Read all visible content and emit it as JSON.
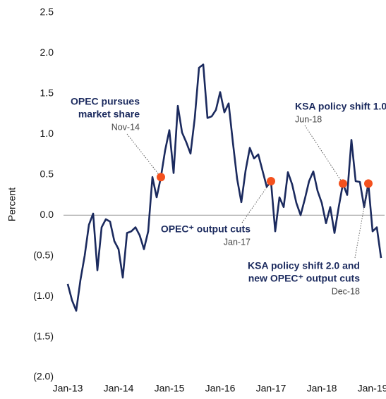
{
  "chart_data": {
    "type": "line",
    "y_label": "Percent",
    "categories": [
      "Jan-13",
      null,
      null,
      null,
      null,
      null,
      null,
      null,
      null,
      null,
      null,
      null,
      "Jan-14",
      null,
      null,
      null,
      null,
      null,
      null,
      null,
      null,
      null,
      null,
      null,
      "Jan-15",
      null,
      null,
      null,
      null,
      null,
      null,
      null,
      null,
      null,
      null,
      null,
      "Jan-16",
      null,
      null,
      null,
      null,
      null,
      null,
      null,
      null,
      null,
      null,
      null,
      "Jan-17",
      null,
      null,
      null,
      null,
      null,
      null,
      null,
      null,
      null,
      null,
      null,
      "Jan-18",
      null,
      null,
      null,
      null,
      null,
      null,
      null,
      null,
      null,
      null,
      null,
      "Jan-19",
      null,
      null
    ],
    "series": [
      {
        "color": "#1b2a5e",
        "values": [
          -0.85,
          -1.05,
          -1.18,
          -0.8,
          -0.5,
          -0.12,
          0.02,
          -0.68,
          -0.15,
          -0.05,
          -0.08,
          -0.32,
          -0.42,
          -0.77,
          -0.22,
          -0.2,
          -0.15,
          -0.25,
          -0.42,
          -0.2,
          0.47,
          0.22,
          0.47,
          0.8,
          1.05,
          0.52,
          1.35,
          1.02,
          0.9,
          0.76,
          1.2,
          1.82,
          1.86,
          1.2,
          1.22,
          1.3,
          1.52,
          1.27,
          1.38,
          0.9,
          0.45,
          0.16,
          0.55,
          0.83,
          0.7,
          0.75,
          0.55,
          0.35,
          0.42,
          -0.2,
          0.22,
          0.1,
          0.53,
          0.38,
          0.15,
          0.0,
          0.2,
          0.42,
          0.54,
          0.3,
          0.15,
          -0.1,
          0.1,
          -0.22,
          0.1,
          0.39,
          0.25,
          0.93,
          0.42,
          0.41,
          0.1,
          0.39,
          -0.2,
          -0.15,
          -0.53
        ]
      }
    ],
    "marker_color": "#f4511e",
    "annotations": [
      {
        "lines": [
          "OPEC pursues",
          "market share"
        ],
        "date": "Nov-14",
        "value": 0.47
      },
      {
        "lines": [
          "OPEC⁺ output cuts"
        ],
        "date": "Jan-17",
        "value": 0.42
      },
      {
        "lines": [
          "KSA policy shift 1.0"
        ],
        "date": "Jun-18",
        "value": 0.39
      },
      {
        "lines": [
          "KSA policy shift 2.0 and",
          "new OPEC⁺ output cuts"
        ],
        "date": "Dec-18",
        "value": 0.39
      }
    ],
    "ylim": [
      -2.0,
      2.5
    ],
    "yticks": [
      {
        "value": -2.0,
        "label": "(2.0)"
      },
      {
        "value": -1.5,
        "label": "(1.5)"
      },
      {
        "value": -1.0,
        "label": "(1.0)"
      },
      {
        "value": -0.5,
        "label": "(0.5)"
      },
      {
        "value": 0.0,
        "label": "0.0"
      },
      0.5,
      {
        "value": 1.0,
        "label": "1.0"
      },
      1.5,
      {
        "value": 2.0,
        "label": "2.0"
      },
      2.5
    ]
  }
}
